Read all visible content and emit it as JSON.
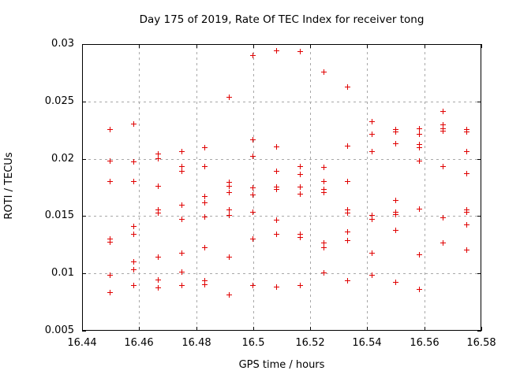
{
  "figure": {
    "background_color": "#ffffff",
    "border_color": "#000000",
    "grid_color": "#a8a8a8"
  },
  "chart_data": {
    "type": "scatter",
    "title": "Day 175 of 2019, Rate Of TEC Index for receiver tong",
    "xlabel": "GPS time / hours",
    "ylabel": "ROTI / TECUs",
    "xlim": [
      16.44,
      16.58
    ],
    "ylim": [
      0.005,
      0.03
    ],
    "xticks": [
      16.44,
      16.46,
      16.48,
      16.5,
      16.52,
      16.54,
      16.56,
      16.58
    ],
    "xtick_labels": [
      "16.44",
      "16.46",
      "16.48",
      "16.5",
      "16.52",
      "16.54",
      "16.56",
      "16.58"
    ],
    "yticks": [
      0.005,
      0.01,
      0.015,
      0.02,
      0.025,
      0.03
    ],
    "ytick_labels": [
      "0.005",
      "0.01",
      "0.015",
      "0.02",
      "0.025",
      "0.03"
    ],
    "grid": true,
    "legend": "none",
    "marker": {
      "shape": "plus",
      "color": "#e00000",
      "size": 7
    },
    "series": [
      {
        "name": "ROTI",
        "points": [
          [
            16.45,
            0.0225
          ],
          [
            16.45,
            0.0198
          ],
          [
            16.45,
            0.018
          ],
          [
            16.45,
            0.013
          ],
          [
            16.45,
            0.0127
          ],
          [
            16.45,
            0.0098
          ],
          [
            16.45,
            0.0083
          ],
          [
            16.4583,
            0.023
          ],
          [
            16.4583,
            0.0197
          ],
          [
            16.4583,
            0.018
          ],
          [
            16.4583,
            0.0141
          ],
          [
            16.4583,
            0.0134
          ],
          [
            16.4583,
            0.011
          ],
          [
            16.4583,
            0.0103
          ],
          [
            16.4583,
            0.0089
          ],
          [
            16.4667,
            0.0204
          ],
          [
            16.4667,
            0.02
          ],
          [
            16.4667,
            0.0176
          ],
          [
            16.4667,
            0.0155
          ],
          [
            16.4667,
            0.0152
          ],
          [
            16.4667,
            0.0114
          ],
          [
            16.4667,
            0.0094
          ],
          [
            16.4667,
            0.0087
          ],
          [
            16.475,
            0.0206
          ],
          [
            16.475,
            0.0193
          ],
          [
            16.475,
            0.0189
          ],
          [
            16.475,
            0.0159
          ],
          [
            16.475,
            0.0147
          ],
          [
            16.475,
            0.0117
          ],
          [
            16.475,
            0.0101
          ],
          [
            16.475,
            0.0089
          ],
          [
            16.4833,
            0.0209
          ],
          [
            16.4833,
            0.0193
          ],
          [
            16.4833,
            0.0167
          ],
          [
            16.4833,
            0.0161
          ],
          [
            16.4833,
            0.0149
          ],
          [
            16.4833,
            0.0122
          ],
          [
            16.4833,
            0.0093
          ],
          [
            16.4833,
            0.009
          ],
          [
            16.4917,
            0.0253
          ],
          [
            16.4917,
            0.0179
          ],
          [
            16.4917,
            0.0176
          ],
          [
            16.4917,
            0.017
          ],
          [
            16.4917,
            0.0155
          ],
          [
            16.4917,
            0.015
          ],
          [
            16.4917,
            0.0114
          ],
          [
            16.4917,
            0.0081
          ],
          [
            16.5,
            0.029
          ],
          [
            16.5,
            0.0216
          ],
          [
            16.5,
            0.0202
          ],
          [
            16.5,
            0.0174
          ],
          [
            16.5,
            0.0168
          ],
          [
            16.5,
            0.0153
          ],
          [
            16.5,
            0.013
          ],
          [
            16.5,
            0.0089
          ],
          [
            16.5083,
            0.0294
          ],
          [
            16.5083,
            0.021
          ],
          [
            16.5083,
            0.0189
          ],
          [
            16.5083,
            0.0175
          ],
          [
            16.5083,
            0.0173
          ],
          [
            16.5083,
            0.0146
          ],
          [
            16.5083,
            0.0134
          ],
          [
            16.5083,
            0.0088
          ],
          [
            16.5167,
            0.0293
          ],
          [
            16.5167,
            0.0193
          ],
          [
            16.5167,
            0.0186
          ],
          [
            16.5167,
            0.0175
          ],
          [
            16.5167,
            0.0169
          ],
          [
            16.5167,
            0.0134
          ],
          [
            16.5167,
            0.0131
          ],
          [
            16.5167,
            0.0089
          ],
          [
            16.525,
            0.0275
          ],
          [
            16.525,
            0.0192
          ],
          [
            16.525,
            0.018
          ],
          [
            16.525,
            0.0173
          ],
          [
            16.525,
            0.017
          ],
          [
            16.525,
            0.0126
          ],
          [
            16.525,
            0.0122
          ],
          [
            16.525,
            0.01
          ],
          [
            16.5333,
            0.0262
          ],
          [
            16.5333,
            0.0211
          ],
          [
            16.5333,
            0.018
          ],
          [
            16.5333,
            0.0155
          ],
          [
            16.5333,
            0.0152
          ],
          [
            16.5333,
            0.0136
          ],
          [
            16.5333,
            0.0128
          ],
          [
            16.5333,
            0.0093
          ],
          [
            16.5417,
            0.0232
          ],
          [
            16.5417,
            0.0221
          ],
          [
            16.5417,
            0.0206
          ],
          [
            16.5417,
            0.015
          ],
          [
            16.5417,
            0.0147
          ],
          [
            16.5417,
            0.0117
          ],
          [
            16.5417,
            0.0098
          ],
          [
            16.55,
            0.0225
          ],
          [
            16.55,
            0.0223
          ],
          [
            16.55,
            0.0213
          ],
          [
            16.55,
            0.0163
          ],
          [
            16.55,
            0.0153
          ],
          [
            16.55,
            0.0151
          ],
          [
            16.55,
            0.0137
          ],
          [
            16.55,
            0.0092
          ],
          [
            16.5583,
            0.0226
          ],
          [
            16.5583,
            0.0221
          ],
          [
            16.5583,
            0.0212
          ],
          [
            16.5583,
            0.0209
          ],
          [
            16.5583,
            0.0198
          ],
          [
            16.5583,
            0.0156
          ],
          [
            16.5583,
            0.0116
          ],
          [
            16.5583,
            0.0086
          ],
          [
            16.5667,
            0.0241
          ],
          [
            16.5667,
            0.0229
          ],
          [
            16.5667,
            0.0226
          ],
          [
            16.5667,
            0.0224
          ],
          [
            16.5667,
            0.0193
          ],
          [
            16.5667,
            0.0148
          ],
          [
            16.5667,
            0.0126
          ],
          [
            16.575,
            0.0225
          ],
          [
            16.575,
            0.0223
          ],
          [
            16.575,
            0.0206
          ],
          [
            16.575,
            0.0187
          ],
          [
            16.575,
            0.0155
          ],
          [
            16.575,
            0.0153
          ],
          [
            16.575,
            0.0142
          ],
          [
            16.575,
            0.012
          ]
        ]
      }
    ]
  }
}
